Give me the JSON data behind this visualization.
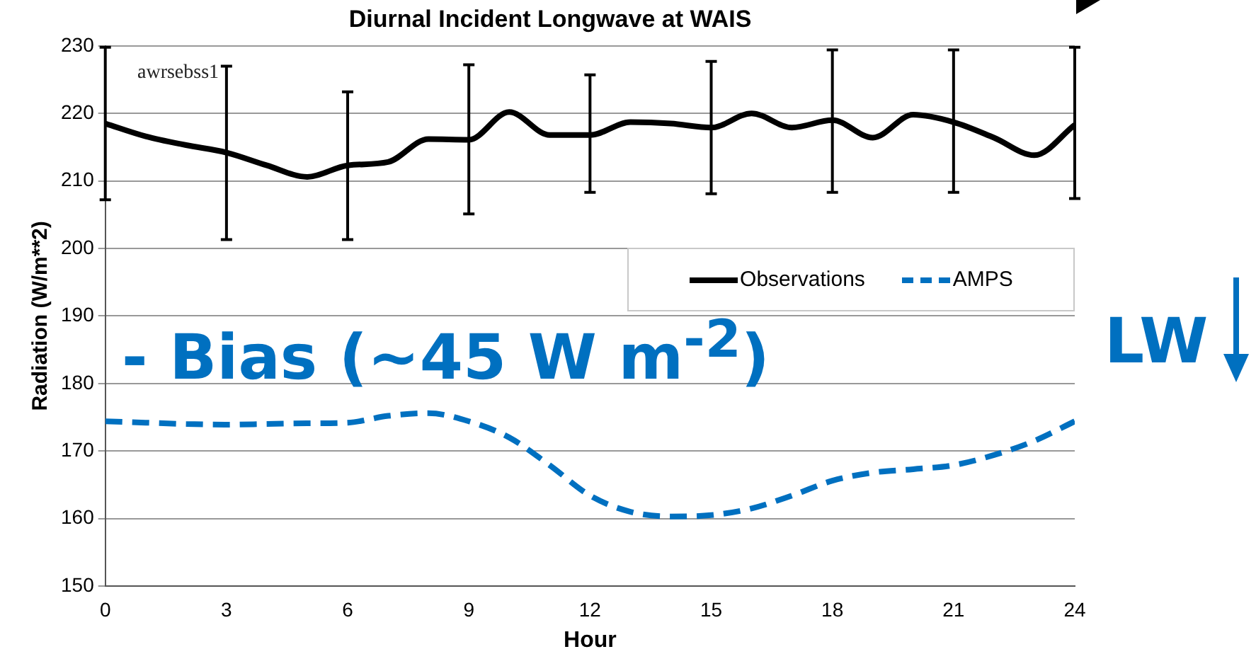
{
  "chart_data": {
    "type": "line",
    "title": "Diurnal Incident Longwave at WAIS",
    "xlabel": "Hour",
    "ylabel": "Radiation (W/m**2)",
    "x": [
      0,
      1,
      2,
      3,
      4,
      5,
      6,
      7,
      8,
      9,
      10,
      11,
      12,
      13,
      14,
      15,
      16,
      17,
      18,
      19,
      20,
      21,
      22,
      23,
      24
    ],
    "series": [
      {
        "name": "Observations",
        "color": "#000000",
        "line_style": "solid",
        "values": [
          218.5,
          216.6,
          215.3,
          214.2,
          212.3,
          210.6,
          212.3,
          212.8,
          216.2,
          216.1,
          220.2,
          216.8,
          216.8,
          218.7,
          218.5,
          217.9,
          220,
          217.9,
          219,
          216.4,
          219.8,
          218.7,
          216.4,
          213.8,
          218.3
        ],
        "errors": [
          [
            207.2,
            229.8
          ],
          null,
          null,
          [
            201.3,
            227
          ],
          null,
          null,
          [
            201.3,
            223.2
          ],
          null,
          null,
          [
            205.1,
            227.2
          ],
          null,
          null,
          [
            208.3,
            225.7
          ],
          null,
          null,
          [
            208.1,
            227.7
          ],
          null,
          null,
          [
            208.3,
            229.4
          ],
          null,
          null,
          [
            208.3,
            229.4
          ],
          null,
          null,
          [
            207.4,
            229.8
          ]
        ]
      },
      {
        "name": "AMPS",
        "color": "#0070c0",
        "line_style": "dashed",
        "values": [
          174.4,
          174.2,
          174,
          173.9,
          174,
          174.1,
          174.2,
          175.2,
          175.6,
          174.4,
          172,
          167.9,
          163.4,
          161,
          160.3,
          160.5,
          161.5,
          163.4,
          165.6,
          166.8,
          167.3,
          167.9,
          169.4,
          171.5,
          174.4
        ]
      }
    ],
    "xlim": [
      0,
      24
    ],
    "xticks": [
      0,
      3,
      6,
      9,
      12,
      15,
      18,
      21,
      24
    ],
    "ylim": [
      150,
      230
    ],
    "yticks": [
      150,
      160,
      170,
      180,
      190,
      200,
      210,
      220,
      230
    ],
    "grid": "y",
    "legend": "right",
    "marker": "none",
    "annotations": [
      "awrsebss1",
      "- Bias (~45 W m$^{-2}$)",
      "LW"
    ]
  }
}
